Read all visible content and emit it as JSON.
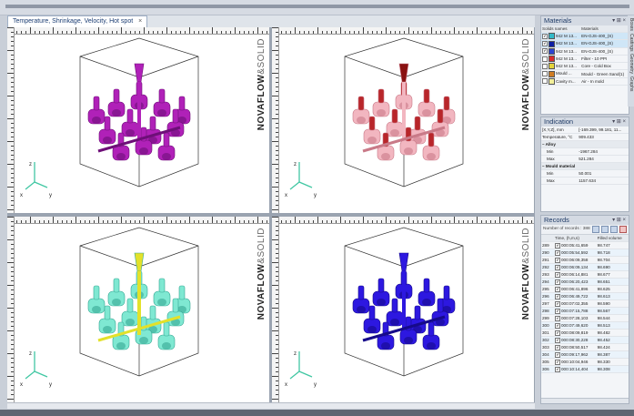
{
  "tab": {
    "title": "Temperature, Shrinkage, Velocity, Hot spot",
    "close": "×"
  },
  "brand": {
    "main": "NOVAFLOW",
    "amp": "&",
    "second": "SOLID"
  },
  "axes": {
    "z": "z",
    "x": "x",
    "y": "y"
  },
  "sidetabs": [
    "Boxes",
    "Castings",
    "Geometry",
    "Graphs"
  ],
  "materials": {
    "title": "Materials",
    "headers": [
      "Solids names",
      "Materials"
    ],
    "rows": [
      {
        "name": "942 M 13...",
        "material": "EN-GJS-400_(S)",
        "color": "#32b9c8",
        "checked": true,
        "selected": true
      },
      {
        "name": "942 M 13...",
        "material": "EN-GJS-400_(S)",
        "color": "#0b1fa3",
        "checked": true,
        "selected": true
      },
      {
        "name": "942 M 13...",
        "material": "EN-GJS-400_(S)",
        "color": "#2b44d1",
        "checked": true,
        "selected": false
      },
      {
        "name": "942 M 13...",
        "material": "Filter - 10 PPI",
        "color": "#d92b2b",
        "checked": false,
        "selected": false
      },
      {
        "name": "942 M 13...",
        "material": "Core - Cold Box",
        "color": "#e5d43a",
        "checked": false,
        "selected": false
      },
      {
        "name": "Mould ...",
        "material": "Mould - Green Sand(1)",
        "color": "#d07d24",
        "checked": false,
        "selected": false
      },
      {
        "name": "Cavity m...",
        "material": "Air - In mold",
        "color": "#f2ef9a",
        "checked": false,
        "selected": false
      }
    ]
  },
  "indication": {
    "title": "Indication",
    "rows": [
      {
        "label": "[X,Y,Z], mm",
        "value": "[-169.399, 99.181, 11..."
      },
      {
        "label": "Temperature, °C",
        "value": "909.433"
      }
    ],
    "alloy": {
      "label": "Alloy",
      "min_label": "Min",
      "min": "-1967.284",
      "max_label": "Max",
      "max": "521.284"
    },
    "mould": {
      "label": "Mould material",
      "min_label": "Min",
      "min": "50.001",
      "max_label": "Max",
      "max": "1157.634"
    }
  },
  "records": {
    "title": "Records",
    "count_label": "Number of records : 388",
    "headers": [
      "",
      "Time, (h,m,s)",
      "Filled volume"
    ],
    "rows": [
      {
        "n": "289",
        "t": "000:05:41,659",
        "v": "98.747"
      },
      {
        "n": "290",
        "t": "000:05:54,592",
        "v": "98.718"
      },
      {
        "n": "291",
        "t": "000:06:09,358",
        "v": "98.704"
      },
      {
        "n": "292",
        "t": "000:06:09,134",
        "v": "98.690"
      },
      {
        "n": "293",
        "t": "000:06:14,881",
        "v": "98.677"
      },
      {
        "n": "294",
        "t": "000:06:20,423",
        "v": "98.651"
      },
      {
        "n": "295",
        "t": "000:06:41,896",
        "v": "98.625"
      },
      {
        "n": "296",
        "t": "000:06:49,722",
        "v": "98.613"
      },
      {
        "n": "297",
        "t": "000:07:02,355",
        "v": "98.590"
      },
      {
        "n": "298",
        "t": "000:07:15,788",
        "v": "98.567"
      },
      {
        "n": "299",
        "t": "000:07:28,103",
        "v": "98.544"
      },
      {
        "n": "300",
        "t": "000:07:49,620",
        "v": "98.513"
      },
      {
        "n": "301",
        "t": "000:08:09,819",
        "v": "98.482"
      },
      {
        "n": "302",
        "t": "000:08:30,228",
        "v": "98.452"
      },
      {
        "n": "303",
        "t": "000:08:50,517",
        "v": "98.424"
      },
      {
        "n": "304",
        "t": "000:09:17,962",
        "v": "98.387"
      },
      {
        "n": "305",
        "t": "000:10:04,946",
        "v": "98.330"
      },
      {
        "n": "306",
        "t": "000:10:14,404",
        "v": "98.308"
      }
    ]
  },
  "viewports": [
    {
      "id": "top-left",
      "color": "#b021b8",
      "dark": "#6e0f78",
      "accent": "#b021b8"
    },
    {
      "id": "top-right",
      "color": "#f2b6c0",
      "dark": "#c97a88",
      "accent": "#8a1212"
    },
    {
      "id": "bottom-left",
      "color": "#7fe8d2",
      "dark": "#35a793",
      "accent": "#e3e12a"
    },
    {
      "id": "bottom-right",
      "color": "#2d18e0",
      "dark": "#160a8a",
      "accent": "#2d18e0"
    }
  ]
}
